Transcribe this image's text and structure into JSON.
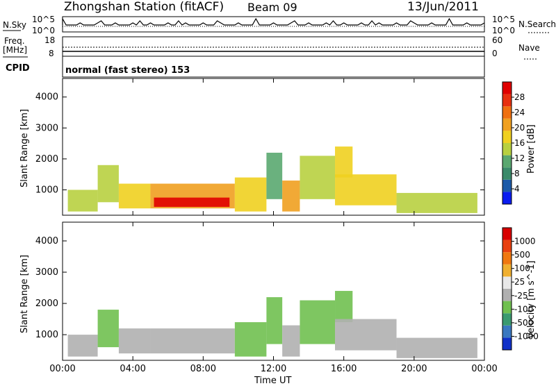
{
  "header": {
    "station": "Zhongshan Station (fitACF)",
    "beam": "Beam 09",
    "date": "13/Jun/2011"
  },
  "top_panels": {
    "nsky_label": "N.Sky",
    "nsky_ticks": [
      "10^5",
      "10^0"
    ],
    "nsearch_label": "N.Search",
    "nsearch_ticks": [
      "10^5",
      "10^0"
    ],
    "freq_label_1": "Freq.",
    "freq_label_2": "[MHz]",
    "freq_ticks": [
      "18",
      "8"
    ],
    "nave_label": "Nave",
    "nave_ticks": [
      "60",
      "0"
    ],
    "cpid_label": "CPID",
    "cpid_text": "normal (fast stereo) 153"
  },
  "colors": {
    "power_scale": [
      "#0a1cf0",
      "#1c5aa8",
      "#3a8a6a",
      "#5aa870",
      "#b8d040",
      "#f0d020",
      "#f0a020",
      "#f07010",
      "#e83010",
      "#e00000"
    ],
    "velocity_scale": [
      "#1030c8",
      "#3a78c0",
      "#3a9a70",
      "#70c050",
      "#b0b0b0",
      "#e8e8e8",
      "#f0b030",
      "#f07810",
      "#e84010",
      "#d80000"
    ]
  },
  "chart_data": [
    {
      "type": "heatmap",
      "name": "power",
      "xlabel": "",
      "ylabel": "Slant Range [km]",
      "x_ticks": [
        "00:00",
        "04:00",
        "08:00",
        "12:00",
        "16:00",
        "20:00",
        "00:00"
      ],
      "xlim": [
        0,
        24
      ],
      "y_ticks": [
        "1000",
        "2000",
        "3000",
        "4000"
      ],
      "ylim": [
        180,
        4600
      ],
      "colorbar_label": "Power [dB]",
      "colorbar_ticks": [
        "28",
        "24",
        "20",
        "16",
        "12",
        "8",
        "4"
      ],
      "colorbar_range": [
        0,
        32
      ],
      "regions": [
        {
          "t0": 0.3,
          "t1": 2.0,
          "r0": 300,
          "r1": 1000,
          "value": 14
        },
        {
          "t0": 2.0,
          "t1": 3.2,
          "r0": 600,
          "r1": 1800,
          "value": 13
        },
        {
          "t0": 3.2,
          "t1": 5.0,
          "r0": 400,
          "r1": 1200,
          "value": 17
        },
        {
          "t0": 5.0,
          "t1": 9.8,
          "r0": 400,
          "r1": 1200,
          "value": 22
        },
        {
          "t0": 5.2,
          "t1": 9.5,
          "r0": 450,
          "r1": 750,
          "value": 29
        },
        {
          "t0": 9.8,
          "t1": 11.6,
          "r0": 300,
          "r1": 1400,
          "value": 19
        },
        {
          "t0": 11.6,
          "t1": 12.5,
          "r0": 700,
          "r1": 2200,
          "value": 12
        },
        {
          "t0": 12.5,
          "t1": 13.5,
          "r0": 300,
          "r1": 1300,
          "value": 21
        },
        {
          "t0": 13.5,
          "t1": 15.5,
          "r0": 700,
          "r1": 2100,
          "value": 15
        },
        {
          "t0": 15.5,
          "t1": 16.5,
          "r0": 1400,
          "r1": 2400,
          "value": 18
        },
        {
          "t0": 15.5,
          "t1": 19.0,
          "r0": 500,
          "r1": 1500,
          "value": 16
        },
        {
          "t0": 19.0,
          "t1": 23.6,
          "r0": 250,
          "r1": 900,
          "value": 13
        }
      ]
    },
    {
      "type": "heatmap",
      "name": "velocity",
      "xlabel": "Time UT",
      "ylabel": "Slant Range [km]",
      "x_ticks": [
        "00:00",
        "04:00",
        "08:00",
        "12:00",
        "16:00",
        "20:00",
        "00:00"
      ],
      "xlim": [
        0,
        24
      ],
      "y_ticks": [
        "1000",
        "2000",
        "3000",
        "4000"
      ],
      "ylim": [
        180,
        4600
      ],
      "colorbar_label": "Velocity [m s^-1]",
      "colorbar_ticks": [
        "1000",
        "500",
        "100",
        "25",
        "-25",
        "-100",
        "-500",
        "-1000"
      ],
      "colorbar_range": [
        -1200,
        1200
      ],
      "regions": [
        {
          "t0": 0.3,
          "t1": 2.0,
          "r0": 300,
          "r1": 1000,
          "value": -150
        },
        {
          "t0": 2.0,
          "t1": 3.2,
          "r0": 600,
          "r1": 1800,
          "value": -300
        },
        {
          "t0": 3.2,
          "t1": 5.0,
          "r0": 400,
          "r1": 1200,
          "value": -200
        },
        {
          "t0": 5.0,
          "t1": 9.8,
          "r0": 400,
          "r1": 1200,
          "value": -180
        },
        {
          "t0": 9.8,
          "t1": 11.6,
          "r0": 300,
          "r1": 1400,
          "value": -250
        },
        {
          "t0": 11.6,
          "t1": 12.5,
          "r0": 700,
          "r1": 2200,
          "value": -400
        },
        {
          "t0": 12.5,
          "t1": 13.5,
          "r0": 300,
          "r1": 1300,
          "value": -150
        },
        {
          "t0": 13.5,
          "t1": 15.5,
          "r0": 700,
          "r1": 2100,
          "value": -350
        },
        {
          "t0": 15.5,
          "t1": 16.5,
          "r0": 1400,
          "r1": 2400,
          "value": -300
        },
        {
          "t0": 15.5,
          "t1": 19.0,
          "r0": 500,
          "r1": 1500,
          "value": -120
        },
        {
          "t0": 19.0,
          "t1": 23.6,
          "r0": 250,
          "r1": 900,
          "value": -60
        }
      ]
    }
  ]
}
